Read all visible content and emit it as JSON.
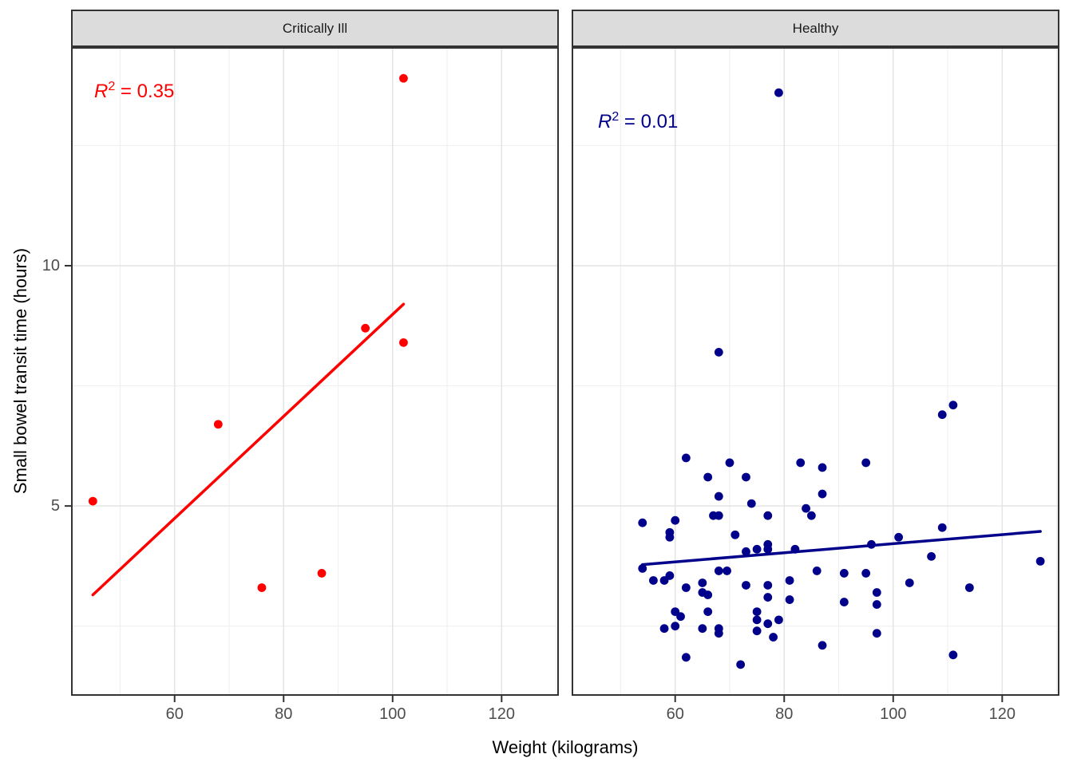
{
  "figure": {
    "background": "#ffffff"
  },
  "axes": {
    "x_title": "Weight (kilograms)",
    "y_title": "Small bowel transit time (hours)",
    "x_major_ticks": [
      60,
      80,
      100,
      120
    ],
    "x_minor_ticks": [
      50,
      70,
      90,
      110,
      130
    ],
    "y_major_ticks": [
      5,
      10
    ],
    "y_minor_ticks": [
      2.5,
      7.5,
      12.5
    ],
    "x_range": [
      41,
      130.5
    ],
    "y_range": [
      1.05,
      14.55
    ],
    "tick_label_color": "#4d4d4d",
    "grid_major_color": "#e4e4e4",
    "grid_minor_color": "#f0f0f0",
    "panel_border_color": "#333333",
    "strip_background": "#dcdcdc"
  },
  "chart_data": [
    {
      "type": "scatter",
      "facet": "Critically Ill",
      "color": "#ff0000",
      "r_squared": {
        "base": "R",
        "exp": "2",
        "rhs": " = 0.35"
      },
      "xlabel": "Weight (kilograms)",
      "ylabel": "Small bowel transit time (hours)",
      "points": [
        [
          45,
          5.1
        ],
        [
          68,
          6.7
        ],
        [
          76,
          3.3
        ],
        [
          87,
          3.6
        ],
        [
          95,
          8.7
        ],
        [
          102,
          8.4
        ],
        [
          102,
          13.9
        ]
      ],
      "trend_line": {
        "x1": 45,
        "y1": 3.15,
        "x2": 102,
        "y2": 9.2
      }
    },
    {
      "type": "scatter",
      "facet": "Healthy",
      "color": "#00008b",
      "r_squared": {
        "base": "R",
        "exp": "2",
        "rhs": " = 0.01"
      },
      "xlabel": "Weight (kilograms)",
      "ylabel": "Small bowel transit time (hours)",
      "points": [
        [
          79,
          13.6
        ],
        [
          68,
          8.2
        ],
        [
          109,
          6.9
        ],
        [
          111,
          7.1
        ],
        [
          62,
          6.0
        ],
        [
          70,
          5.9
        ],
        [
          66,
          5.6
        ],
        [
          73,
          5.6
        ],
        [
          83,
          5.9
        ],
        [
          87,
          5.8
        ],
        [
          95,
          5.9
        ],
        [
          68,
          5.2
        ],
        [
          74,
          5.05
        ],
        [
          87,
          5.25
        ],
        [
          54,
          4.65
        ],
        [
          60,
          4.7
        ],
        [
          67,
          4.8
        ],
        [
          68,
          4.8
        ],
        [
          77,
          4.8
        ],
        [
          84,
          4.95
        ],
        [
          85,
          4.8
        ],
        [
          109,
          4.55
        ],
        [
          59,
          4.45
        ],
        [
          59,
          4.35
        ],
        [
          71,
          4.4
        ],
        [
          73,
          4.05
        ],
        [
          75,
          4.1
        ],
        [
          77,
          4.2
        ],
        [
          77,
          4.1
        ],
        [
          82,
          4.1
        ],
        [
          96,
          4.2
        ],
        [
          101,
          4.35
        ],
        [
          54,
          3.7
        ],
        [
          56,
          3.45
        ],
        [
          58,
          3.45
        ],
        [
          59,
          3.55
        ],
        [
          68,
          3.65
        ],
        [
          69.5,
          3.65
        ],
        [
          86,
          3.65
        ],
        [
          91,
          3.6
        ],
        [
          95,
          3.6
        ],
        [
          107,
          3.95
        ],
        [
          127,
          3.85
        ],
        [
          62,
          3.3
        ],
        [
          65,
          3.4
        ],
        [
          65,
          3.2
        ],
        [
          66,
          3.15
        ],
        [
          73,
          3.35
        ],
        [
          77,
          3.35
        ],
        [
          77,
          3.1
        ],
        [
          81,
          3.45
        ],
        [
          81,
          3.05
        ],
        [
          91,
          3.0
        ],
        [
          97,
          3.2
        ],
        [
          103,
          3.4
        ],
        [
          114,
          3.3
        ],
        [
          66,
          2.8
        ],
        [
          60,
          2.8
        ],
        [
          61,
          2.7
        ],
        [
          58,
          2.45
        ],
        [
          60,
          2.5
        ],
        [
          65,
          2.45
        ],
        [
          68,
          2.45
        ],
        [
          68,
          2.35
        ],
        [
          75,
          2.8
        ],
        [
          75,
          2.63
        ],
        [
          75,
          2.4
        ],
        [
          77,
          2.55
        ],
        [
          78,
          2.27
        ],
        [
          79,
          2.63
        ],
        [
          87,
          2.1
        ],
        [
          97,
          2.35
        ],
        [
          97,
          2.95
        ],
        [
          111,
          1.9
        ],
        [
          62,
          1.85
        ],
        [
          72,
          1.7
        ]
      ],
      "trend_line": {
        "x1": 54,
        "y1": 3.78,
        "x2": 127,
        "y2": 4.47
      }
    }
  ]
}
